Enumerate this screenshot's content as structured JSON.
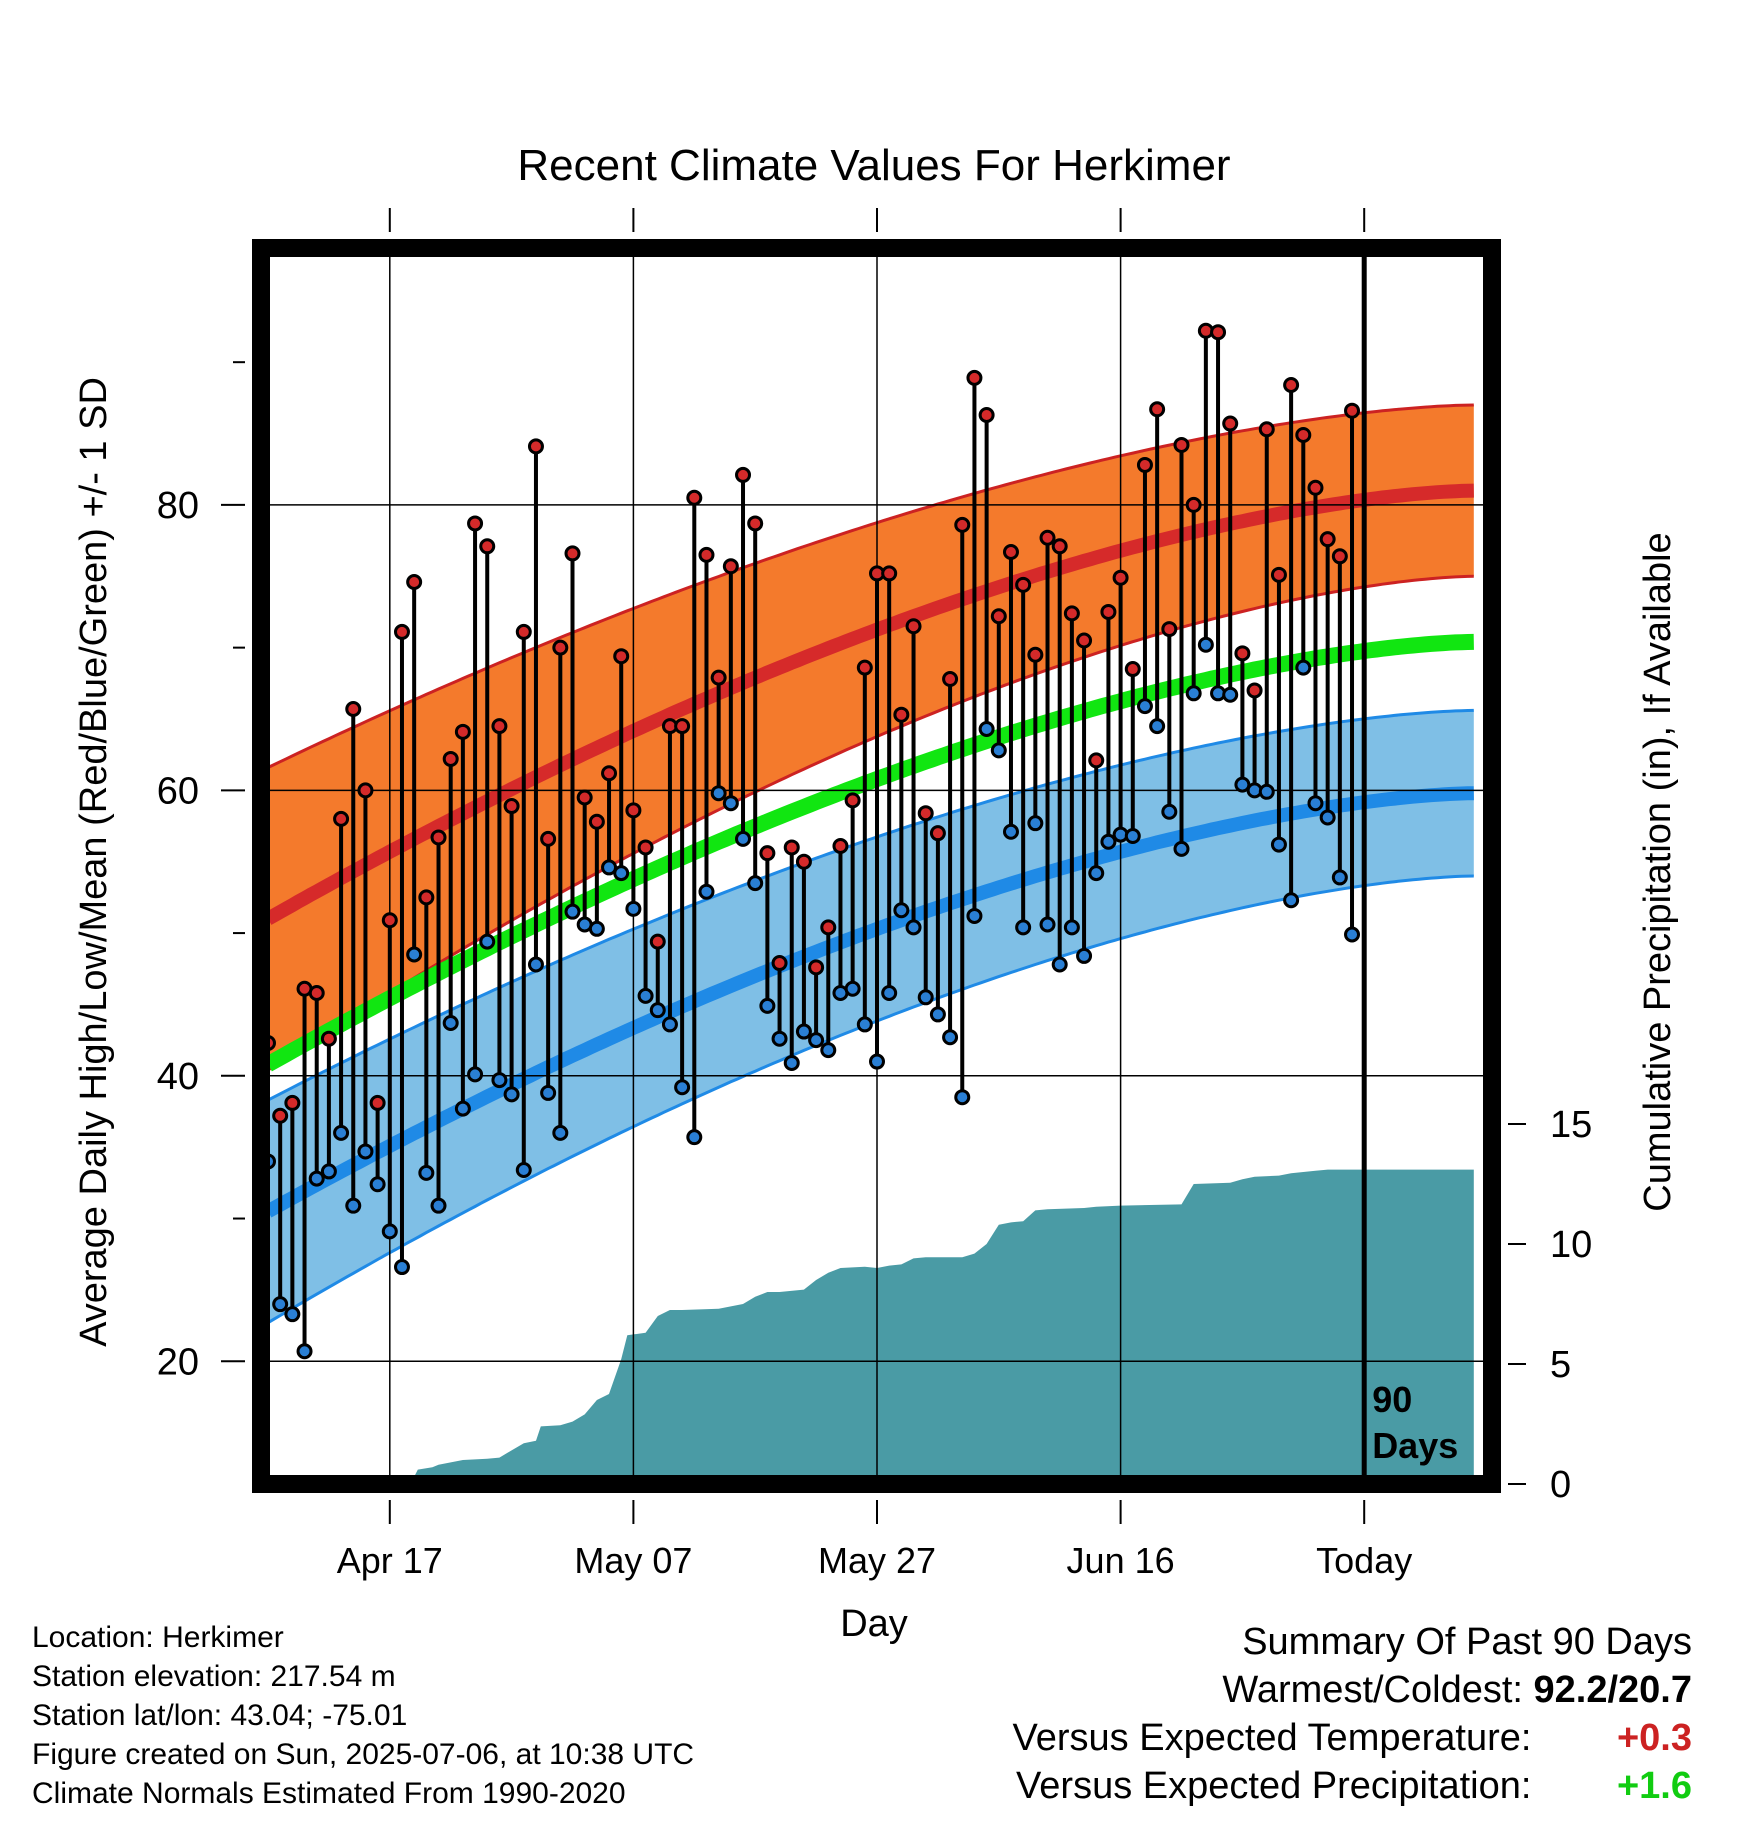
{
  "chart_data": {
    "type": "line",
    "title": "Recent Climate Values For Herkimer",
    "xlabel": "Day",
    "ylabel_left": "Average Daily High/Low/Mean (Red/Blue/Green) +/- 1 SD",
    "ylabel_right": "Cumulative Precipitation (in), If Available",
    "x_tick_labels": [
      "Apr 17",
      "May 07",
      "May 27",
      "Jun 16",
      "Today"
    ],
    "x_tick_day_index": [
      10,
      30,
      50,
      70,
      90
    ],
    "xlim_day_index": [
      0,
      99
    ],
    "today_marker_label": [
      "90",
      "Days"
    ],
    "y_left_ticks": [
      20,
      40,
      60,
      80
    ],
    "ylim_left": [
      11.4,
      98
    ],
    "y_right_ticks": [
      0,
      5,
      10,
      15
    ],
    "ylim_right": [
      0,
      51.5
    ],
    "grid": true,
    "colors": {
      "high_band": "#f47a2c",
      "high_mean": "#d62a2a",
      "high_edge": "#cc2222",
      "low_band": "#7fbfe6",
      "low_mean": "#1f8ae6",
      "low_edge": "#1f8ae6",
      "mean": "#11e611",
      "precip": "#4a9ba5",
      "high_dot": "#d42a2a",
      "low_dot": "#2a7fd4"
    },
    "normals": {
      "high_mean_start": 51.0,
      "high_mean_end": 81.0,
      "high_sd_start": 10.6,
      "high_sd_end": 6.0,
      "low_mean_start": 30.5,
      "low_mean_end": 59.8,
      "low_sd_start": 7.8,
      "low_sd_end": 5.8,
      "mean_start": 40.8,
      "mean_end": 70.4
    },
    "daily_high": [
      42.3,
      37.2,
      38.1,
      46.1,
      45.8,
      42.6,
      58.0,
      65.7,
      60.0,
      38.1,
      50.9,
      71.1,
      74.6,
      52.5,
      56.7,
      62.2,
      64.1,
      78.7,
      77.1,
      64.5,
      58.9,
      71.1,
      84.1,
      56.6,
      70.0,
      76.6,
      59.5,
      57.8,
      61.2,
      69.4,
      58.6,
      56.0,
      49.4,
      64.5,
      64.5,
      80.5,
      76.5,
      67.9,
      75.7,
      82.1,
      78.7,
      55.6,
      47.9,
      56.0,
      55.0,
      47.6,
      50.4,
      56.1,
      59.3,
      68.6,
      75.2,
      75.2,
      65.3,
      71.5,
      58.4,
      57.0,
      67.8,
      78.6,
      88.9,
      86.3,
      72.2,
      76.7,
      74.4,
      69.5,
      77.7,
      77.1,
      72.4,
      70.5,
      62.1,
      72.5,
      74.9,
      68.5,
      82.8,
      86.7,
      71.3,
      84.2,
      80.0,
      92.2,
      92.1,
      85.7,
      69.6,
      67.0,
      85.3,
      75.1,
      88.4,
      84.9,
      81.2,
      77.6,
      76.4,
      86.6
    ],
    "daily_low": [
      34.0,
      24.0,
      23.3,
      20.7,
      32.8,
      33.3,
      36.0,
      30.9,
      34.7,
      32.4,
      29.1,
      26.6,
      48.5,
      33.2,
      30.9,
      43.7,
      37.7,
      40.1,
      49.4,
      39.7,
      38.7,
      33.4,
      47.8,
      38.8,
      36.0,
      51.5,
      50.6,
      50.3,
      54.6,
      54.2,
      51.7,
      45.6,
      44.6,
      43.6,
      39.2,
      35.7,
      52.9,
      59.8,
      59.1,
      56.6,
      53.5,
      44.9,
      42.6,
      40.9,
      43.1,
      42.5,
      41.8,
      45.8,
      46.1,
      43.6,
      41.0,
      45.8,
      51.6,
      50.4,
      45.5,
      44.3,
      42.7,
      38.5,
      51.2,
      64.3,
      62.8,
      57.1,
      50.4,
      57.7,
      50.6,
      47.8,
      50.4,
      48.4,
      54.2,
      56.4,
      56.9,
      56.8,
      65.9,
      64.5,
      58.5,
      55.9,
      66.8,
      70.2,
      66.8,
      66.7,
      60.4,
      60.0,
      59.9,
      56.2,
      52.3,
      68.6,
      59.1,
      58.1,
      53.9,
      49.9
    ],
    "cumulative_precip": [
      [
        0,
        0
      ],
      [
        6,
        0
      ],
      [
        7,
        0.1
      ],
      [
        10,
        0.2
      ],
      [
        12,
        0.3
      ],
      [
        12.3,
        0.6
      ],
      [
        13.5,
        0.7
      ],
      [
        14,
        0.8
      ],
      [
        15,
        0.9
      ],
      [
        16,
        1.0
      ],
      [
        18,
        1.05
      ],
      [
        19,
        1.1
      ],
      [
        20,
        1.4
      ],
      [
        21,
        1.7
      ],
      [
        22,
        1.8
      ],
      [
        22.4,
        2.4
      ],
      [
        24,
        2.45
      ],
      [
        25,
        2.6
      ],
      [
        26,
        2.9
      ],
      [
        27,
        3.5
      ],
      [
        28,
        3.75
      ],
      [
        29,
        5.2
      ],
      [
        29.5,
        6.2
      ],
      [
        31,
        6.3
      ],
      [
        32,
        7.0
      ],
      [
        33,
        7.25
      ],
      [
        34,
        7.25
      ],
      [
        37,
        7.3
      ],
      [
        38,
        7.4
      ],
      [
        39,
        7.5
      ],
      [
        40,
        7.8
      ],
      [
        41,
        8.0
      ],
      [
        42,
        8.0
      ],
      [
        44,
        8.1
      ],
      [
        45,
        8.5
      ],
      [
        46,
        8.8
      ],
      [
        47,
        9.0
      ],
      [
        49,
        9.05
      ],
      [
        50,
        9.0
      ],
      [
        51,
        9.1
      ],
      [
        52,
        9.15
      ],
      [
        53,
        9.4
      ],
      [
        54,
        9.45
      ],
      [
        57,
        9.45
      ],
      [
        58,
        9.6
      ],
      [
        59,
        10.0
      ],
      [
        60,
        10.8
      ],
      [
        61,
        10.9
      ],
      [
        62,
        10.95
      ],
      [
        63,
        11.4
      ],
      [
        64,
        11.45
      ],
      [
        67,
        11.5
      ],
      [
        68,
        11.55
      ],
      [
        70,
        11.6
      ],
      [
        75,
        11.65
      ],
      [
        76,
        12.5
      ],
      [
        79,
        12.55
      ],
      [
        80,
        12.7
      ],
      [
        81,
        12.8
      ],
      [
        83,
        12.85
      ],
      [
        84,
        12.95
      ],
      [
        85,
        13.0
      ],
      [
        86,
        13.05
      ],
      [
        87,
        13.1
      ],
      [
        99,
        13.1
      ]
    ]
  },
  "info": [
    "Location: Herkimer",
    "Station elevation: 217.54 m",
    "Station lat/lon: 43.04; -75.01",
    "Figure created on Sun, 2025-07-06, at 10:38 UTC",
    "Climate Normals Estimated From 1990-2020"
  ],
  "summary": {
    "heading": "Summary Of Past 90 Days",
    "rows": [
      {
        "label": "Warmest/Coldest:",
        "value": "92.2/20.7",
        "color": "#000000"
      },
      {
        "label": "Versus Expected Temperature:",
        "value": "+0.3",
        "color": "#cc2222"
      },
      {
        "label": "Versus Expected Precipitation:",
        "value": "+1.6",
        "color": "#11cc11"
      }
    ]
  }
}
